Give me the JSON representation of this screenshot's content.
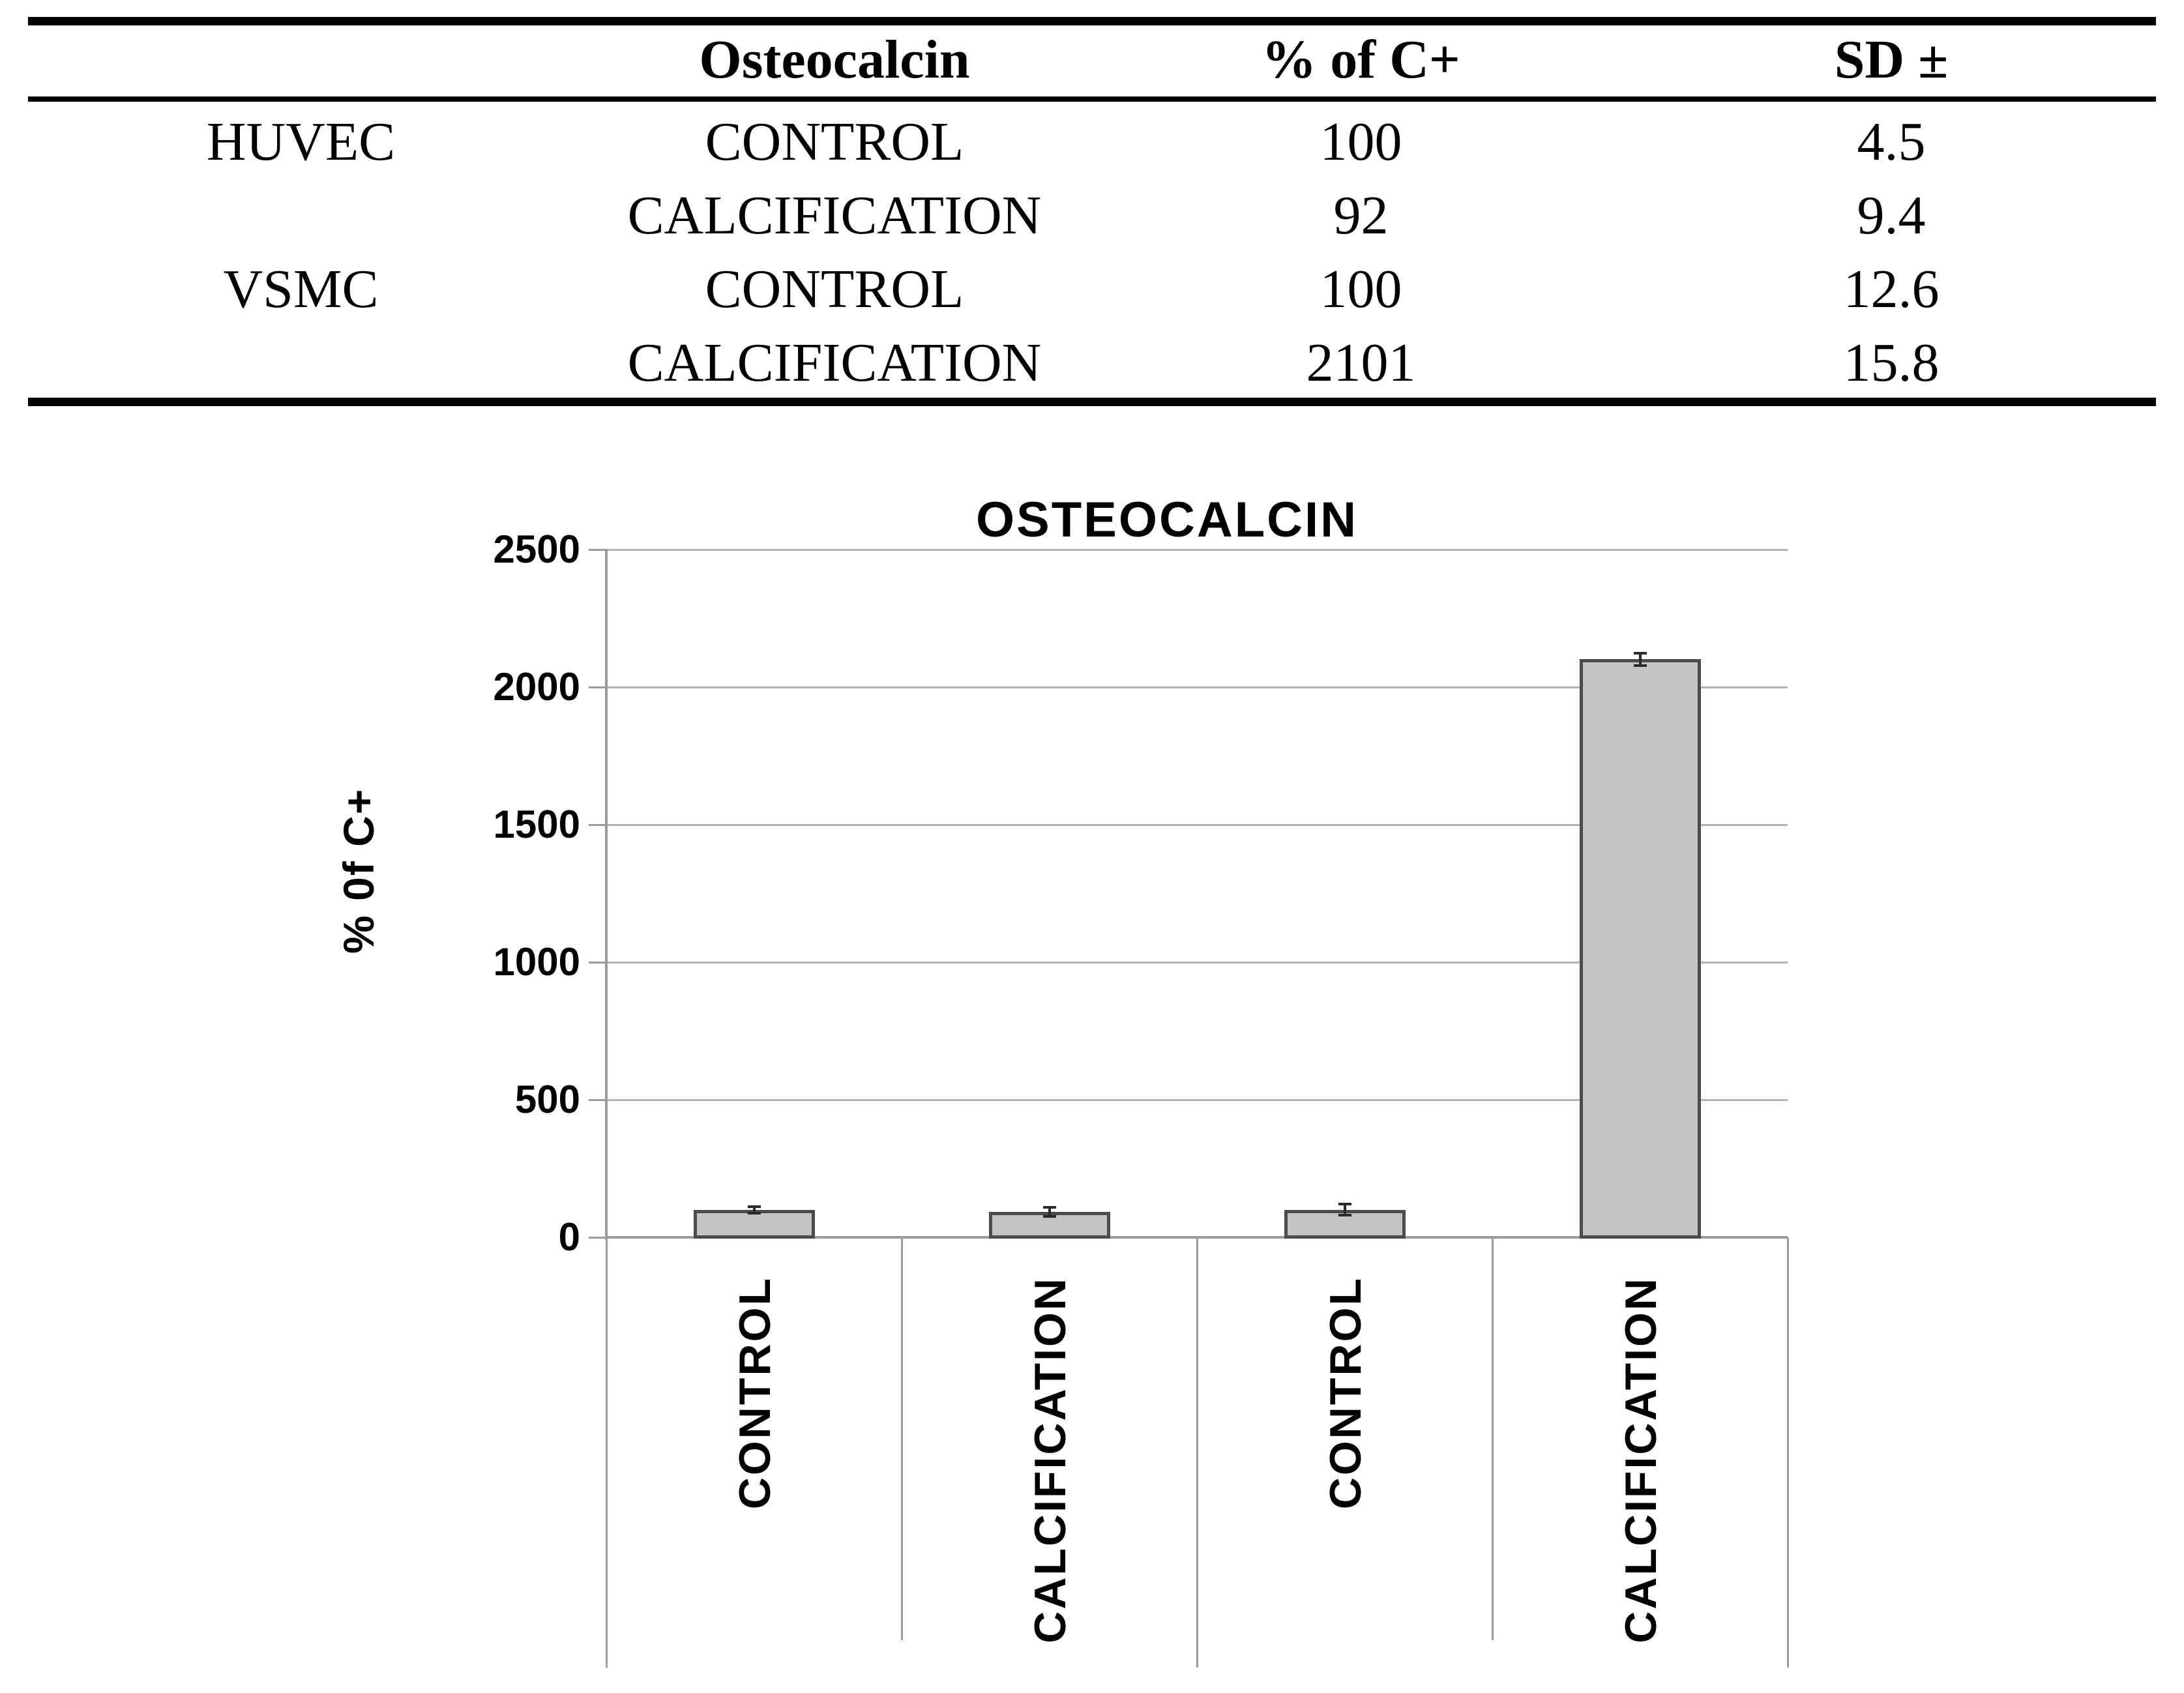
{
  "table": {
    "headers": {
      "col1": "",
      "col2": "Osteocalcin",
      "col3": "% of C+",
      "col4": "SD ±"
    },
    "rows": [
      {
        "group": "HUVEC",
        "condition": "CONTROL",
        "pct": "100",
        "sd": "4.5"
      },
      {
        "group": "",
        "condition": "CALCIFICATION",
        "pct": "92",
        "sd": "9.4"
      },
      {
        "group": "VSMC",
        "condition": "CONTROL",
        "pct": "100",
        "sd": "12.6"
      },
      {
        "group": "",
        "condition": "CALCIFICATION",
        "pct": "2101",
        "sd": "15.8"
      }
    ]
  },
  "chart_data": {
    "type": "bar",
    "title": "OSTEOCALCIN",
    "ylabel": "% 0f C+",
    "xlabel": "",
    "categories": [
      "CONTROL",
      "CALCIFICATION",
      "CONTROL",
      "CALCIFICATION"
    ],
    "values": [
      100,
      92,
      100,
      2101
    ],
    "error_sd": [
      4.5,
      9.4,
      12.6,
      15.8
    ],
    "yticks": [
      0,
      500,
      1000,
      1500,
      2000,
      2500
    ],
    "ylim": [
      0,
      2500
    ],
    "grid": true,
    "legend": false
  },
  "colors": {
    "bar_fill": "#c3c3c3",
    "bar_border": "#4c4c4c",
    "gridline": "#b3b3b3",
    "axis": "#9b9b9b",
    "error_bar": "#2a2a2a",
    "text": "#000000",
    "background": "#ffffff"
  }
}
